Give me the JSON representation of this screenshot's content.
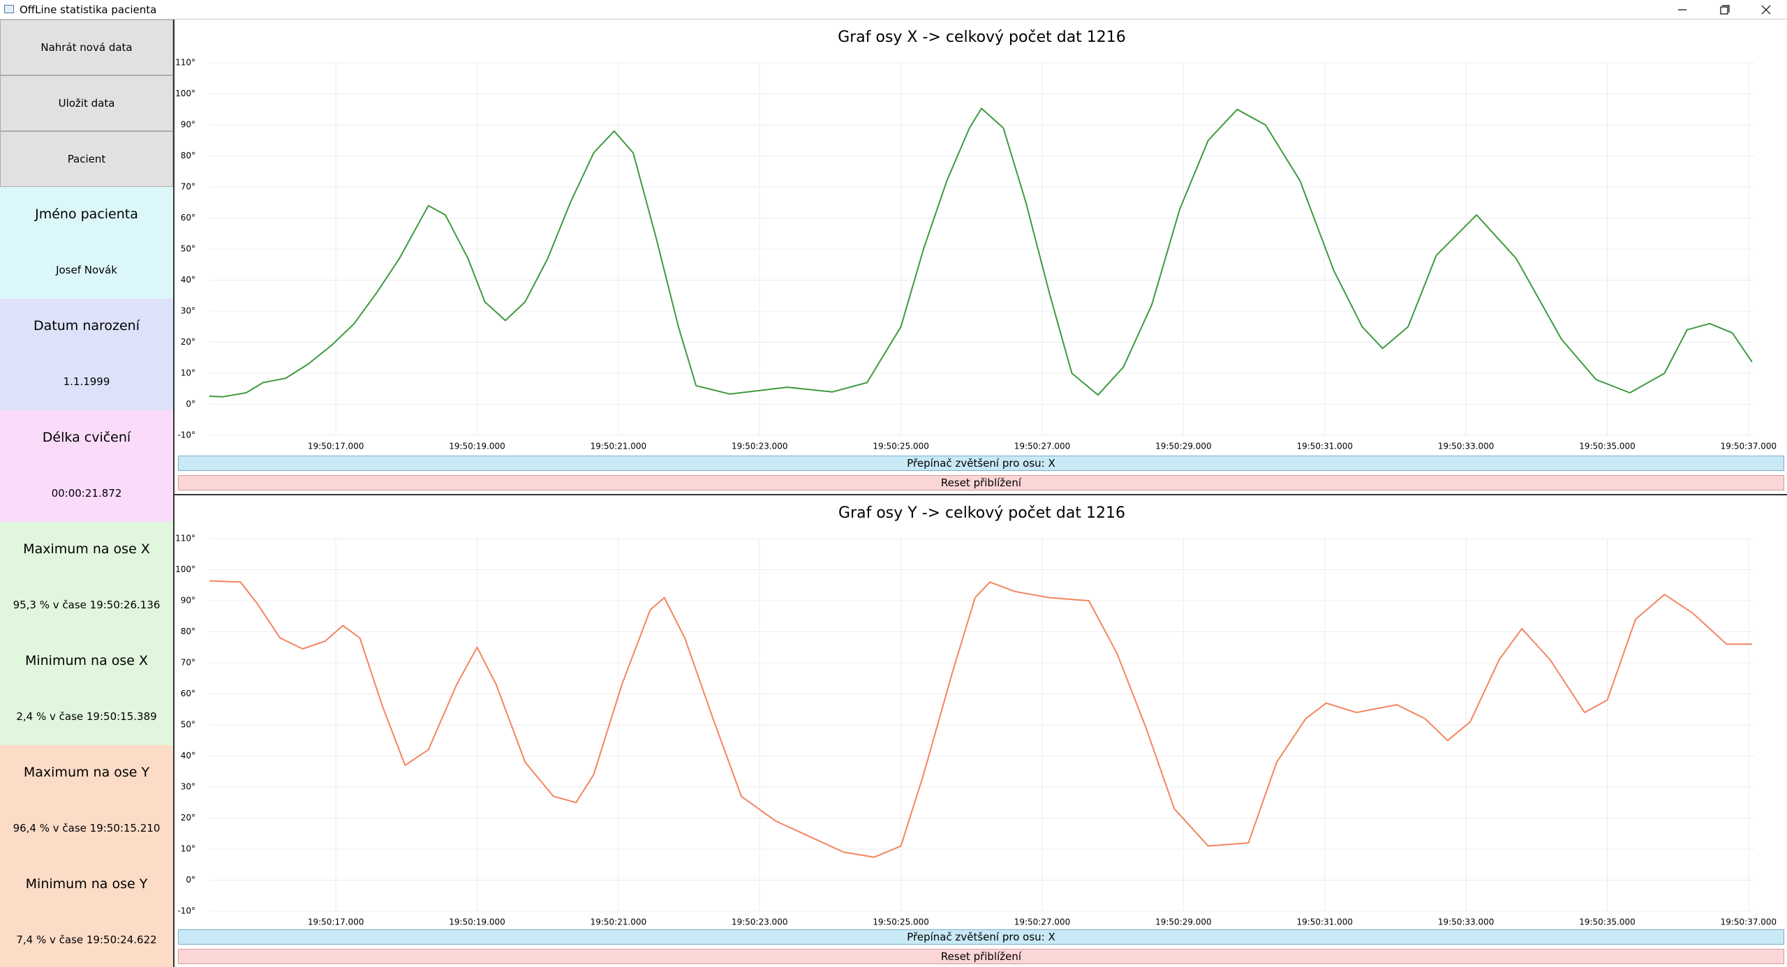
{
  "window": {
    "title": "OffLine statistika pacienta"
  },
  "sidebar": {
    "buttons": [
      "Nahrát nová data",
      "Uložit data",
      "Pacient"
    ],
    "fields": [
      {
        "label": "Jméno pacienta",
        "value": "Josef Novák"
      },
      {
        "label": "Datum narození",
        "value": "1.1.1999"
      },
      {
        "label": "Délka cvičení",
        "value": "00:00:21.872"
      },
      {
        "label": "Maximum na ose X",
        "value": "95,3 % v čase 19:50:26.136"
      },
      {
        "label": "Minimum na ose X",
        "value": "2,4 % v čase 19:50:15.389"
      },
      {
        "label": "Maximum na ose Y",
        "value": "96,4 % v čase 19:50:15.210"
      },
      {
        "label": "Minimum na ose Y",
        "value": "7,4 % v čase 19:50:24.622"
      }
    ]
  },
  "controls": [
    {
      "zoom": "Přepínač zvětšení pro osu: X",
      "reset": "Reset přiblížení"
    },
    {
      "zoom": "Přepínač zvětšení pro osu: X",
      "reset": "Reset přiblížení"
    }
  ],
  "chart_data": [
    {
      "type": "line",
      "title": "Graf osy X  -> celkový počet dat 1216",
      "color": "#3e9a3e",
      "grid": true,
      "xlim": [
        15.21,
        37.08
      ],
      "xticks": [
        {
          "value": 17,
          "label": "19:50:17.000"
        },
        {
          "value": 19,
          "label": "19:50:19.000"
        },
        {
          "value": 21,
          "label": "19:50:21.000"
        },
        {
          "value": 23,
          "label": "19:50:23.000"
        },
        {
          "value": 25,
          "label": "19:50:25.000"
        },
        {
          "value": 27,
          "label": "19:50:27.000"
        },
        {
          "value": 29,
          "label": "19:50:29.000"
        },
        {
          "value": 31,
          "label": "19:50:31.000"
        },
        {
          "value": 33,
          "label": "19:50:33.000"
        },
        {
          "value": 35,
          "label": "19:50:35.000"
        },
        {
          "value": 37,
          "label": "19:50:37.000"
        }
      ],
      "ylim": [
        -10,
        110
      ],
      "yticks": [
        {
          "value": 110,
          "label": "110°"
        },
        {
          "value": 100,
          "label": "100°"
        },
        {
          "value": 90,
          "label": "90°"
        },
        {
          "value": 80,
          "label": "80°"
        },
        {
          "value": 70,
          "label": "70°"
        },
        {
          "value": 60,
          "label": "60°"
        },
        {
          "value": 50,
          "label": "50°"
        },
        {
          "value": 40,
          "label": "40°"
        },
        {
          "value": 30,
          "label": "30°"
        },
        {
          "value": 20,
          "label": "20°"
        },
        {
          "value": 10,
          "label": "10°"
        },
        {
          "value": 0,
          "label": "0°"
        },
        {
          "value": -10,
          "label": "-10°"
        }
      ],
      "x": [
        15.21,
        15.39,
        15.73,
        15.97,
        16.29,
        16.61,
        16.94,
        17.26,
        17.58,
        17.9,
        18.31,
        18.55,
        18.87,
        19.11,
        19.4,
        19.68,
        20.0,
        20.32,
        20.65,
        20.94,
        21.21,
        21.53,
        21.85,
        22.1,
        22.58,
        23.39,
        24.03,
        24.52,
        25.0,
        25.32,
        25.65,
        25.97,
        26.14,
        26.45,
        26.77,
        27.1,
        27.42,
        27.79,
        28.15,
        28.55,
        28.95,
        29.35,
        29.76,
        30.16,
        30.65,
        31.13,
        31.53,
        31.82,
        32.18,
        32.58,
        33.15,
        33.71,
        34.35,
        34.84,
        35.32,
        35.81,
        36.13,
        36.45,
        36.77,
        37.05
      ],
      "values": [
        2.6,
        2.4,
        3.7,
        7,
        8.4,
        13,
        19,
        26,
        36,
        47,
        64,
        61,
        47,
        33,
        27,
        33,
        47,
        65,
        81,
        88,
        81,
        54,
        25,
        6,
        3.3,
        5.5,
        4,
        7,
        25,
        50,
        72,
        89,
        95.3,
        89,
        65,
        36,
        10,
        3,
        12,
        32,
        63,
        85,
        95,
        90,
        72,
        43,
        25,
        18,
        25,
        48,
        61,
        47,
        21,
        8,
        3.7,
        10,
        24,
        26,
        23,
        13.6
      ]
    },
    {
      "type": "line",
      "title": "Graf osy Y  -> celkový počet dat 1216",
      "color": "#f4845f",
      "grid": true,
      "xlim": [
        15.21,
        37.08
      ],
      "xticks": [
        {
          "value": 17,
          "label": "19:50:17.000"
        },
        {
          "value": 19,
          "label": "19:50:19.000"
        },
        {
          "value": 21,
          "label": "19:50:21.000"
        },
        {
          "value": 23,
          "label": "19:50:23.000"
        },
        {
          "value": 25,
          "label": "19:50:25.000"
        },
        {
          "value": 27,
          "label": "19:50:27.000"
        },
        {
          "value": 29,
          "label": "19:50:29.000"
        },
        {
          "value": 31,
          "label": "19:50:31.000"
        },
        {
          "value": 33,
          "label": "19:50:33.000"
        },
        {
          "value": 35,
          "label": "19:50:35.000"
        },
        {
          "value": 37,
          "label": "19:50:37.000"
        }
      ],
      "ylim": [
        -10,
        110
      ],
      "yticks": [
        {
          "value": 110,
          "label": "110°"
        },
        {
          "value": 100,
          "label": "100°"
        },
        {
          "value": 90,
          "label": "90°"
        },
        {
          "value": 80,
          "label": "80°"
        },
        {
          "value": 70,
          "label": "70°"
        },
        {
          "value": 60,
          "label": "60°"
        },
        {
          "value": 50,
          "label": "50°"
        },
        {
          "value": 40,
          "label": "40°"
        },
        {
          "value": 30,
          "label": "30°"
        },
        {
          "value": 20,
          "label": "20°"
        },
        {
          "value": 10,
          "label": "10°"
        },
        {
          "value": 0,
          "label": "0°"
        },
        {
          "value": -10,
          "label": "-10°"
        }
      ],
      "x": [
        15.21,
        15.65,
        15.89,
        16.21,
        16.53,
        16.85,
        17.1,
        17.34,
        17.66,
        17.98,
        18.31,
        18.71,
        19.0,
        19.27,
        19.68,
        20.08,
        20.4,
        20.65,
        21.05,
        21.45,
        21.65,
        21.94,
        22.34,
        22.74,
        23.23,
        23.71,
        24.19,
        24.62,
        25.0,
        25.32,
        25.73,
        26.05,
        26.26,
        26.61,
        27.1,
        27.66,
        28.06,
        28.47,
        28.87,
        29.35,
        29.92,
        30.32,
        30.73,
        31.02,
        31.45,
        32.02,
        32.42,
        32.74,
        33.06,
        33.47,
        33.79,
        34.19,
        34.68,
        35.0,
        35.4,
        35.81,
        36.21,
        36.69,
        37.05
      ],
      "values": [
        96.4,
        96,
        89,
        78,
        74.5,
        77,
        82,
        78,
        56,
        37,
        42,
        63,
        75,
        63,
        38,
        27,
        25,
        34,
        63,
        87,
        91,
        78,
        52,
        27,
        19,
        14,
        9,
        7.4,
        11,
        34,
        67,
        91,
        96,
        93,
        91,
        90,
        73,
        49,
        23,
        11,
        12,
        38,
        52,
        57,
        54,
        56.5,
        52,
        45,
        51,
        71,
        81,
        71,
        54,
        58,
        84,
        92,
        86,
        76,
        76
      ]
    }
  ]
}
